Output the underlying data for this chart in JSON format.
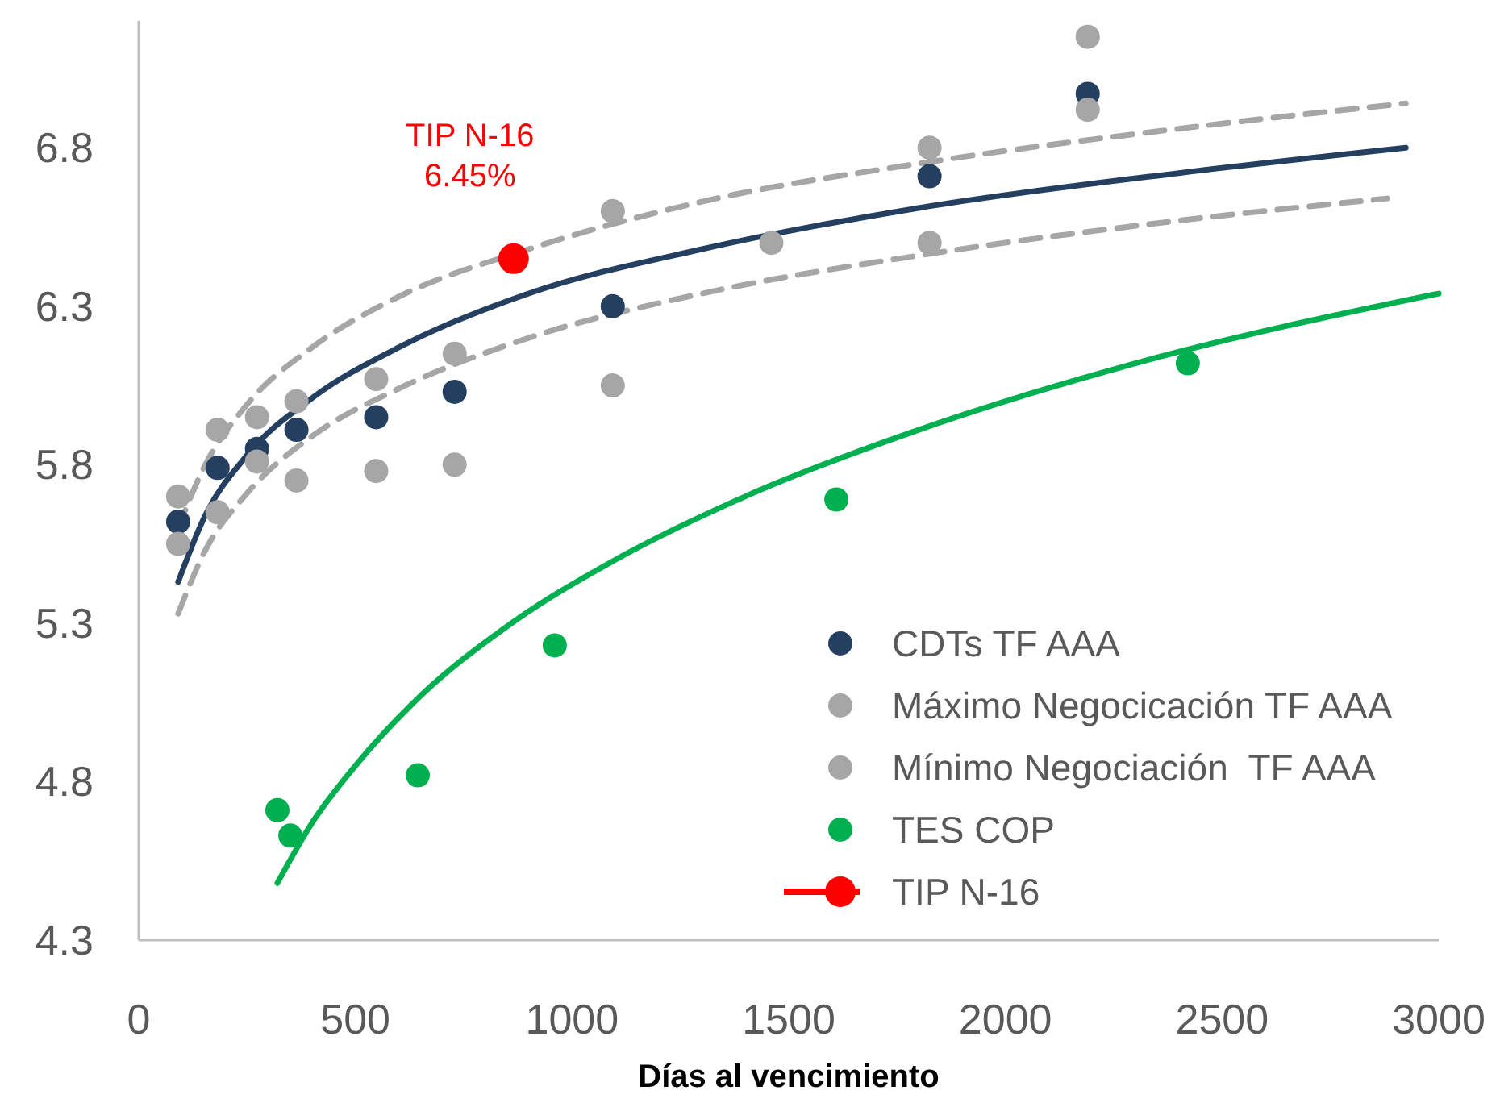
{
  "chart_data": {
    "type": "scatter",
    "xlabel": "Días al vencimiento",
    "xlim": [
      0,
      3000
    ],
    "ylim": [
      4.3,
      7.2
    ],
    "xticks": [
      0,
      500,
      1000,
      1500,
      2000,
      2500,
      3000
    ],
    "yticks": [
      4.3,
      4.8,
      5.3,
      5.8,
      6.3,
      6.8
    ],
    "grid": false,
    "legend": "bottom right",
    "marker": "circle",
    "x": [
      91,
      182,
      273,
      364,
      548,
      729,
      1094,
      1460,
      1825,
      2190
    ],
    "series": [
      {
        "name": "CDTs TF AAA",
        "color": "#243f60",
        "values": [
          5.62,
          5.79,
          5.85,
          5.91,
          5.95,
          6.03,
          6.3,
          null,
          6.71,
          6.97
        ]
      },
      {
        "name": "Máximo Negocicación TF AAA",
        "color": "#a6a6a6",
        "values": [
          5.7,
          5.91,
          5.95,
          6.0,
          6.07,
          6.15,
          6.6,
          6.5,
          6.8,
          7.15
        ]
      },
      {
        "name": "Mínimo Negociación  TF AAA",
        "color": "#a6a6a6",
        "values": [
          5.55,
          5.65,
          5.81,
          5.75,
          5.78,
          5.8,
          6.05,
          null,
          6.5,
          6.92
        ]
      },
      {
        "name": "TES COP",
        "color": "#00b050",
        "x": [
          320,
          350,
          644,
          960,
          1610,
          2421
        ],
        "values": [
          4.71,
          4.63,
          4.82,
          5.23,
          5.69,
          6.12
        ]
      },
      {
        "name": "TIP N-16",
        "color": "#ff0000",
        "type": "line",
        "marker": "circle",
        "x": [
          865
        ],
        "values": [
          6.45
        ]
      },
      {
        "type": "line",
        "color": "#243f60",
        "marker": "none",
        "line_style": "solid",
        "x": [
          91,
          150,
          250,
          400,
          600,
          900,
          1300,
          1800,
          2400,
          2924
        ],
        "values": [
          5.43,
          5.63,
          5.83,
          6.01,
          6.17,
          6.34,
          6.48,
          6.61,
          6.72,
          6.8
        ]
      },
      {
        "type": "line",
        "color": "#a6a6a6",
        "marker": "none",
        "line_style": "dashed",
        "x": [
          91,
          150,
          250,
          400,
          600,
          900,
          1300,
          1800,
          2400,
          2924
        ],
        "values": [
          5.6,
          5.79,
          5.99,
          6.17,
          6.33,
          6.48,
          6.63,
          6.75,
          6.86,
          6.94
        ]
      },
      {
        "type": "line",
        "color": "#a6a6a6",
        "marker": "none",
        "line_style": "dashed",
        "x": [
          91,
          150,
          250,
          400,
          600,
          900,
          1300,
          1800,
          2400,
          2881
        ],
        "values": [
          5.33,
          5.52,
          5.71,
          5.89,
          6.04,
          6.2,
          6.34,
          6.46,
          6.57,
          6.64
        ]
      },
      {
        "type": "line",
        "color": "#00b050",
        "marker": "none",
        "line_style": "solid",
        "x": [
          320,
          400,
          500,
          650,
          850,
          1100,
          1400,
          1800,
          2300,
          3000
        ],
        "values": [
          4.48,
          4.67,
          4.85,
          5.07,
          5.29,
          5.5,
          5.7,
          5.91,
          6.12,
          6.34
        ]
      }
    ],
    "annotations": [
      {
        "text": "TIP N-16\n6.45%",
        "x": 865,
        "y": 6.45
      }
    ]
  }
}
